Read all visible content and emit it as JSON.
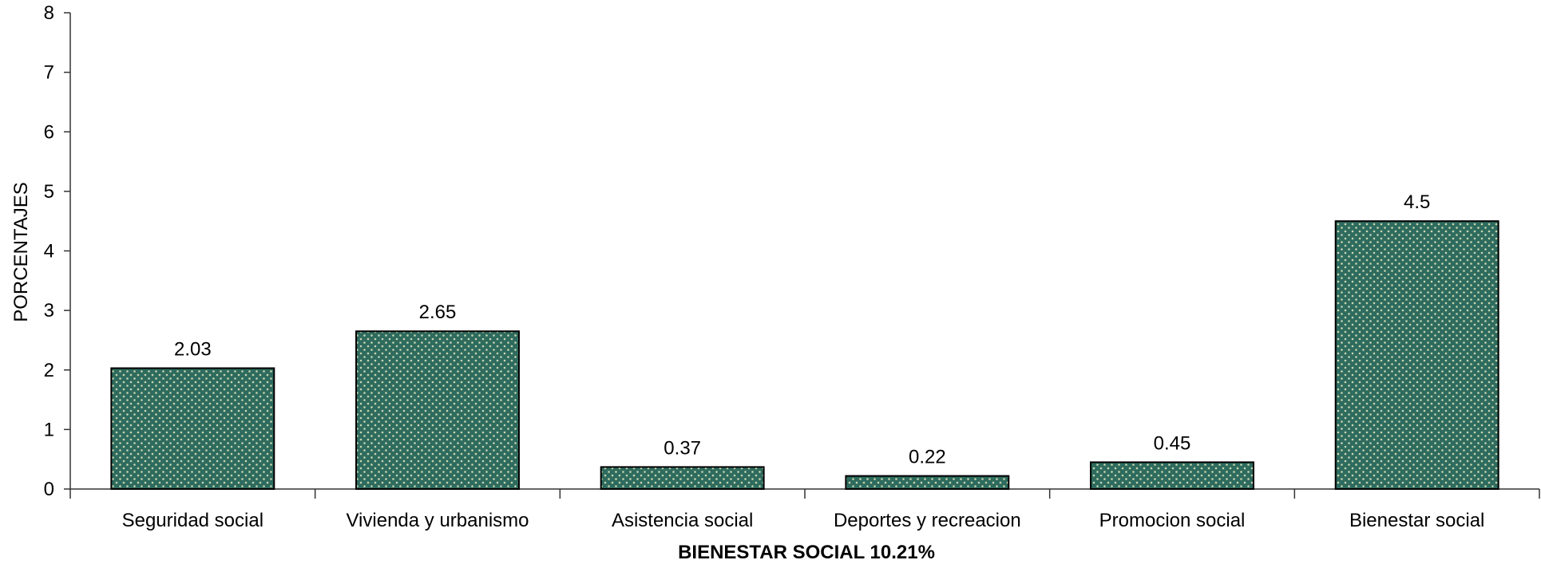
{
  "chart_data": {
    "type": "bar",
    "title": "",
    "xlabel": "BIENESTAR SOCIAL 10.21%",
    "ylabel": "PORCENTAJES",
    "ylim": [
      0,
      8
    ],
    "yticks": [
      "0",
      "1",
      "2",
      "3",
      "4",
      "5",
      "6",
      "7",
      "8"
    ],
    "grid": false,
    "legend": "none",
    "categories": [
      "Seguridad social",
      "Vivienda y urbanismo",
      "Asistencia social",
      "Deportes y recreacion",
      "Promocion social",
      "Bienestar social"
    ],
    "values": [
      2.03,
      2.65,
      0.37,
      0.22,
      0.45,
      4.5
    ],
    "value_labels": [
      "2.03",
      "2.65",
      "0.37",
      "0.22",
      "0.45",
      "4.5"
    ],
    "colors": {
      "bar_fill": "#2e6b5e",
      "bar_dots": "#c8d6b0",
      "bar_stroke": "#000000",
      "axis": "#333333"
    }
  }
}
